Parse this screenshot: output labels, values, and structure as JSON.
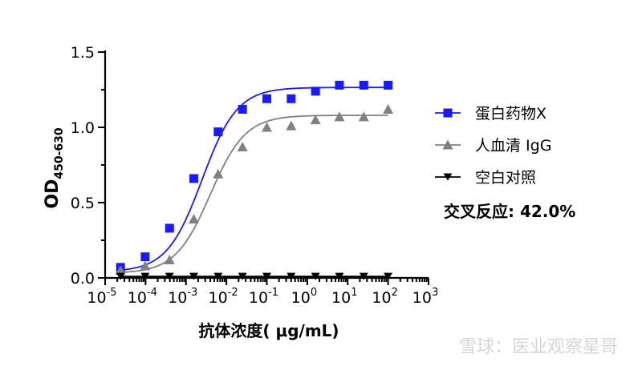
{
  "chart_data": {
    "type": "scatter",
    "title": "",
    "xlabel": "抗体浓度( μg/mL)",
    "ylabel_main": "OD",
    "ylabel_sub": "450-630",
    "x_scale": "log",
    "xlim": [
      1e-05,
      1000
    ],
    "ylim": [
      0,
      1.5
    ],
    "y_ticks": [
      "0.0",
      "0.5",
      "1.0",
      "1.5"
    ],
    "x_tick_exponents": [
      "-5",
      "-4",
      "-3",
      "-2",
      "-1",
      "0",
      "1",
      "2",
      "3"
    ],
    "x_tick_base": "10",
    "grid": false,
    "legend_position": "right",
    "x": [
      2.4e-05,
      9.77e-05,
      0.000391,
      0.00156,
      0.00625,
      0.025,
      0.1,
      0.4,
      1.6,
      6.25,
      25,
      100
    ],
    "series": [
      {
        "name": "蛋白药物X",
        "color": "#1a1aff",
        "marker": "square",
        "values": [
          0.07,
          0.14,
          0.33,
          0.66,
          0.97,
          1.12,
          1.19,
          1.19,
          1.24,
          1.28,
          1.28,
          1.28
        ],
        "fit": {
          "bottom": 0.04,
          "top": 1.265,
          "ec50": 0.0025,
          "hill": 1.0
        }
      },
      {
        "name": "人血清 IgG",
        "color": "#808080",
        "marker": "triangle-up",
        "values": [
          0.05,
          0.08,
          0.12,
          0.39,
          0.69,
          0.87,
          1.0,
          1.01,
          1.05,
          1.07,
          1.07,
          1.12
        ],
        "fit": {
          "bottom": 0.03,
          "top": 1.08,
          "ec50": 0.004,
          "hill": 1.0
        }
      },
      {
        "name": "空白对照",
        "color": "#000000",
        "marker": "triangle-down",
        "values": [
          0.01,
          0.01,
          0.01,
          0.01,
          0.01,
          0.01,
          0.01,
          0.01,
          0.01,
          0.01,
          0.01,
          0.01
        ],
        "fit": {
          "bottom": 0.01,
          "top": 0.01,
          "ec50": 0.01,
          "hill": 1.0
        }
      }
    ],
    "annotation": "交叉反应: 42.0%"
  },
  "watermark": "雪球：医业观察星哥"
}
